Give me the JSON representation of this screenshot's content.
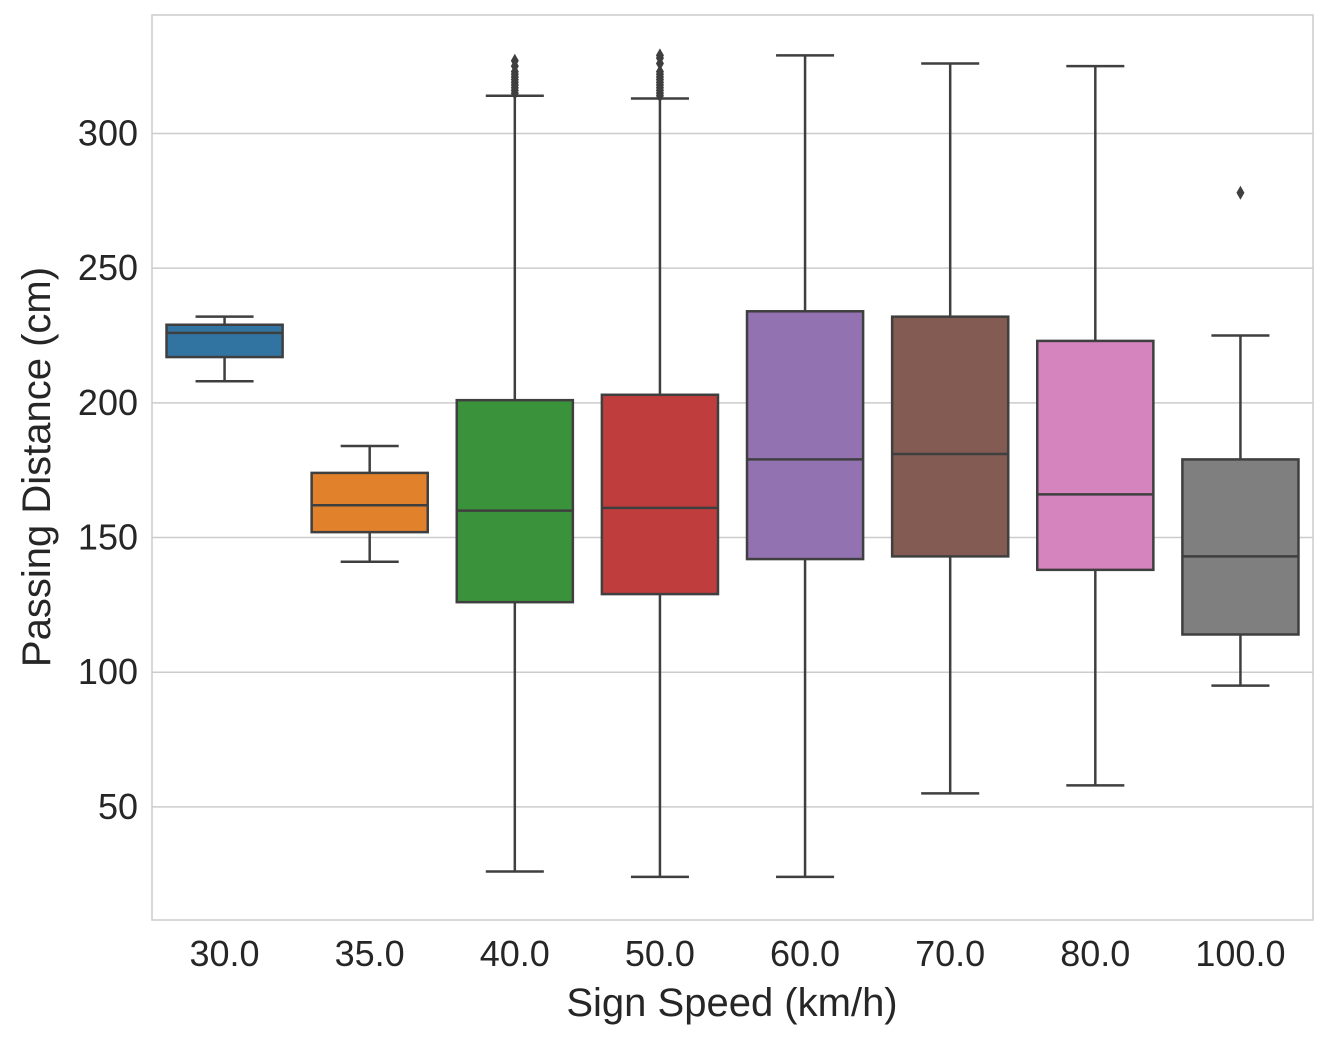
{
  "chart_data": {
    "type": "box",
    "title": "",
    "xlabel": "Sign Speed (km/h)",
    "ylabel": "Passing Distance (cm)",
    "ylim": [
      8,
      344
    ],
    "yticks": [
      50,
      100,
      150,
      200,
      250,
      300
    ],
    "ytick_labels": [
      "50",
      "100",
      "150",
      "200",
      "250",
      "300"
    ],
    "grid": true,
    "categories": [
      "30.0",
      "35.0",
      "40.0",
      "50.0",
      "60.0",
      "70.0",
      "80.0",
      "100.0"
    ],
    "boxes": [
      {
        "category": "30.0",
        "color": "#3274a1",
        "whisker_low": 208,
        "q1": 217,
        "median": 226,
        "q3": 229,
        "whisker_high": 232,
        "outliers": []
      },
      {
        "category": "35.0",
        "color": "#e1812c",
        "whisker_low": 141,
        "q1": 152,
        "median": 162,
        "q3": 174,
        "whisker_high": 184,
        "outliers": []
      },
      {
        "category": "40.0",
        "color": "#3a923a",
        "whisker_low": 26,
        "q1": 126,
        "median": 160,
        "q3": 201,
        "whisker_high": 314,
        "outliers": [
          315,
          316,
          317,
          318,
          319,
          320,
          321,
          322,
          323,
          325,
          327
        ]
      },
      {
        "category": "50.0",
        "color": "#c03d3e",
        "whisker_low": 24,
        "q1": 129,
        "median": 161,
        "q3": 203,
        "whisker_high": 313,
        "outliers": [
          314,
          315,
          316,
          317,
          318,
          319,
          320,
          321,
          322,
          323,
          326,
          328,
          329
        ]
      },
      {
        "category": "60.0",
        "color": "#9372b2",
        "whisker_low": 24,
        "q1": 142,
        "median": 179,
        "q3": 234,
        "whisker_high": 329,
        "outliers": []
      },
      {
        "category": "70.0",
        "color": "#845b53",
        "whisker_low": 55,
        "q1": 143,
        "median": 181,
        "q3": 232,
        "whisker_high": 326,
        "outliers": []
      },
      {
        "category": "80.0",
        "color": "#d684bd",
        "whisker_low": 58,
        "q1": 138,
        "median": 166,
        "q3": 223,
        "whisker_high": 325,
        "outliers": []
      },
      {
        "category": "100.0",
        "color": "#7f7f7f",
        "whisker_low": 95,
        "q1": 114,
        "median": 143,
        "q3": 179,
        "whisker_high": 225,
        "outliers": [
          278
        ]
      }
    ]
  }
}
